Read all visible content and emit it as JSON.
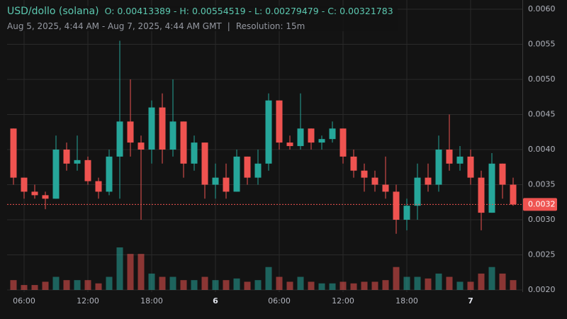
{
  "header": {
    "symbol": "USD/dollo (solana)",
    "open": "O: 0.00413389",
    "high": "H: 0.00554519",
    "low": "L: 0.00279479",
    "close": "C: 0.00321783",
    "range": "Aug 5, 2025, 4:44 AM - Aug 7, 2025, 4:44 AM GMT",
    "separator": "|",
    "resolution": "Resolution: 15m"
  },
  "chart_data": {
    "type": "candlestick",
    "categories": [
      null,
      "06:00",
      null,
      null,
      null,
      null,
      null,
      "12:00",
      null,
      null,
      null,
      null,
      null,
      "18:00",
      null,
      null,
      null,
      null,
      null,
      "6",
      null,
      null,
      null,
      null,
      null,
      "06:00",
      null,
      null,
      null,
      null,
      null,
      "12:00",
      null,
      null,
      null,
      null,
      null,
      "18:00",
      null,
      null,
      null,
      null,
      null,
      "7",
      null,
      null,
      null,
      null
    ],
    "open": [
      0.0043,
      0.0036,
      0.0034,
      0.00335,
      0.0033,
      0.004,
      0.0038,
      0.00385,
      0.00355,
      0.0034,
      0.0039,
      0.0044,
      0.0041,
      0.004,
      0.0046,
      0.004,
      0.0044,
      0.0038,
      0.0041,
      0.0035,
      0.0036,
      0.0034,
      0.0039,
      0.0036,
      0.0038,
      0.0047,
      0.0041,
      0.00405,
      0.0043,
      0.0041,
      0.00415,
      0.0043,
      0.0039,
      0.0037,
      0.0036,
      0.0035,
      0.0034,
      0.003,
      0.0032,
      0.0036,
      0.0035,
      0.004,
      0.0038,
      0.0039,
      0.0036,
      0.0031,
      0.0038,
      0.0035
    ],
    "high": [
      0.0043,
      0.0036,
      0.0035,
      0.0034,
      0.0042,
      0.0041,
      0.0042,
      0.0039,
      0.0036,
      0.004,
      0.00555,
      0.005,
      0.0042,
      0.0047,
      0.0048,
      0.005,
      0.0044,
      0.0042,
      0.0041,
      0.0038,
      0.0038,
      0.004,
      0.0039,
      0.004,
      0.0048,
      0.0047,
      0.0042,
      0.0048,
      0.0043,
      0.0042,
      0.0044,
      0.0043,
      0.004,
      0.0038,
      0.0037,
      0.0039,
      0.0035,
      0.0033,
      0.0038,
      0.0038,
      0.0042,
      0.0045,
      0.00405,
      0.004,
      0.0037,
      0.00395,
      0.0038,
      0.0036
    ],
    "low": [
      0.0035,
      0.0033,
      0.0033,
      0.00315,
      0.0033,
      0.0037,
      0.0037,
      0.0035,
      0.0033,
      0.00335,
      0.0033,
      0.0039,
      0.003,
      0.0038,
      0.0038,
      0.0039,
      0.0036,
      0.0037,
      0.0033,
      0.0033,
      0.0033,
      0.0034,
      0.0035,
      0.0035,
      0.0037,
      0.004,
      0.004,
      0.004,
      0.004,
      0.004,
      0.0041,
      0.0038,
      0.0036,
      0.0034,
      0.0034,
      0.0033,
      0.0028,
      0.00285,
      0.003,
      0.0034,
      0.0034,
      0.0037,
      0.0037,
      0.0035,
      0.00285,
      0.0031,
      0.0033,
      0.0032
    ],
    "close": [
      0.0036,
      0.0034,
      0.00335,
      0.0033,
      0.004,
      0.0038,
      0.00385,
      0.00355,
      0.0034,
      0.0039,
      0.0044,
      0.0041,
      0.004,
      0.0046,
      0.004,
      0.0044,
      0.0038,
      0.0041,
      0.0035,
      0.0036,
      0.0034,
      0.0039,
      0.0036,
      0.0038,
      0.0047,
      0.0041,
      0.00405,
      0.0043,
      0.0041,
      0.00415,
      0.0043,
      0.0039,
      0.0037,
      0.0036,
      0.0035,
      0.0034,
      0.003,
      0.0032,
      0.0036,
      0.0035,
      0.004,
      0.0038,
      0.0039,
      0.0036,
      0.0031,
      0.0038,
      0.0035,
      0.00321783
    ],
    "volume": [
      6,
      3,
      3,
      5,
      8,
      6,
      6,
      6,
      4,
      8,
      26,
      22,
      22,
      10,
      8,
      8,
      6,
      6,
      8,
      6,
      6,
      7,
      5,
      6,
      14,
      8,
      5,
      8,
      5,
      4,
      4,
      5,
      4,
      5,
      5,
      6,
      14,
      8,
      8,
      7,
      10,
      8,
      5,
      5,
      10,
      14,
      10,
      6
    ],
    "last_price_label": "0.0032",
    "up_color": "#26a69a",
    "down_color": "#ef5350",
    "ylim": [
      0.002,
      0.006
    ],
    "yticks": [
      {
        "value": 0.002,
        "label": "0.0020"
      },
      {
        "value": 0.0025,
        "label": "0.0025"
      },
      {
        "value": 0.003,
        "label": "0.0030"
      },
      {
        "value": 0.0035,
        "label": "0.0035"
      },
      {
        "value": 0.004,
        "label": "0.0040"
      },
      {
        "value": 0.0045,
        "label": "0.0045"
      },
      {
        "value": 0.005,
        "label": "0.0050"
      },
      {
        "value": 0.0055,
        "label": "0.0055"
      },
      {
        "value": 0.006,
        "label": "0.0060"
      }
    ],
    "grid": true
  }
}
